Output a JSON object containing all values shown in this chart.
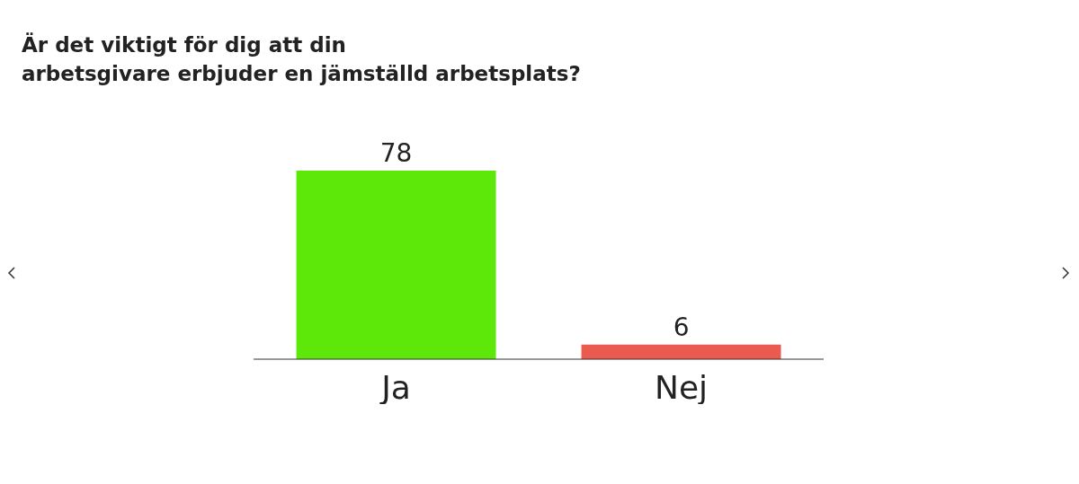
{
  "chart_data": {
    "type": "bar",
    "title": "Är det viktigt för dig att din\narbetsgivare erbjuder en jämställd arbetsplats?",
    "categories": [
      "Ja",
      "Nej"
    ],
    "values": [
      78,
      6
    ],
    "colors": [
      "#5ee80a",
      "#ea5a4f"
    ],
    "data_labels": true
  }
}
